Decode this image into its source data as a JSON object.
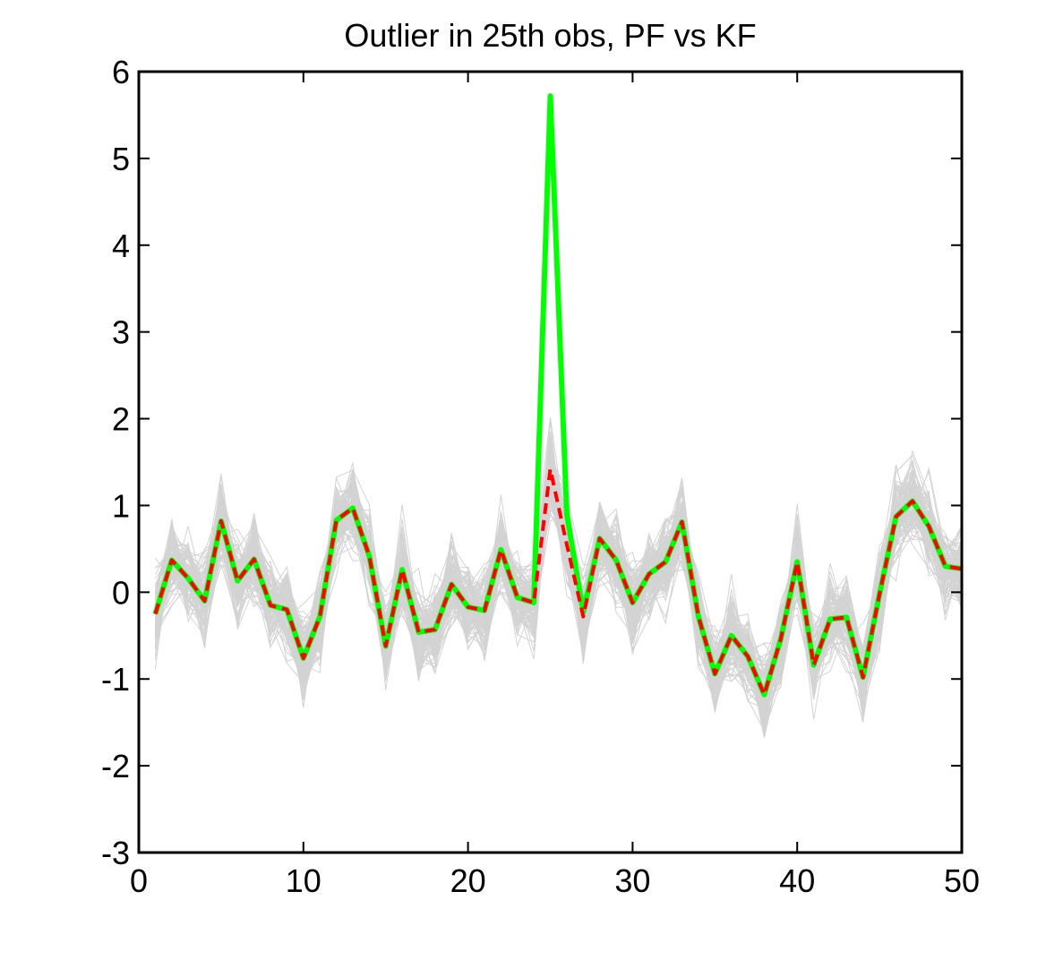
{
  "chart_data": {
    "type": "line",
    "title": "Outlier in 25th obs, PF vs KF",
    "xlabel": "",
    "ylabel": "",
    "xlim": [
      0,
      50
    ],
    "ylim": [
      -3,
      6
    ],
    "xticks": [
      0,
      10,
      20,
      30,
      40,
      50
    ],
    "yticks": [
      -3,
      -2,
      -1,
      0,
      1,
      2,
      3,
      4,
      5,
      6
    ],
    "grid": false,
    "legend": "none",
    "x": [
      1,
      2,
      3,
      4,
      5,
      6,
      7,
      8,
      9,
      10,
      11,
      12,
      13,
      14,
      15,
      16,
      17,
      18,
      19,
      20,
      21,
      22,
      23,
      24,
      25,
      26,
      27,
      28,
      29,
      30,
      31,
      32,
      33,
      34,
      35,
      36,
      37,
      38,
      39,
      40,
      41,
      42,
      43,
      44,
      45,
      46,
      47,
      48,
      49,
      50
    ],
    "series": [
      {
        "color": "#00ff00",
        "style": "solid",
        "values": [
          -0.25,
          0.37,
          0.16,
          -0.1,
          0.82,
          0.13,
          0.38,
          -0.15,
          -0.2,
          -0.76,
          -0.28,
          0.83,
          0.97,
          0.42,
          -0.62,
          0.26,
          -0.46,
          -0.43,
          0.09,
          -0.17,
          -0.21,
          0.49,
          -0.06,
          -0.12,
          5.72,
          0.9,
          -0.23,
          0.62,
          0.37,
          -0.12,
          0.21,
          0.35,
          0.81,
          -0.28,
          -0.94,
          -0.5,
          -0.74,
          -1.18,
          -0.54,
          0.35,
          -0.84,
          -0.31,
          -0.29,
          -0.98,
          -0.02,
          0.87,
          1.05,
          0.76,
          0.3,
          0.27
        ]
      },
      {
        "color": "#ff0000",
        "style": "dashed",
        "values": [
          -0.25,
          0.37,
          0.16,
          -0.1,
          0.82,
          0.13,
          0.38,
          -0.15,
          -0.2,
          -0.76,
          -0.28,
          0.83,
          0.97,
          0.42,
          -0.62,
          0.26,
          -0.46,
          -0.43,
          0.09,
          -0.17,
          -0.21,
          0.49,
          -0.06,
          -0.12,
          1.42,
          0.55,
          -0.28,
          0.62,
          0.37,
          -0.12,
          0.21,
          0.35,
          0.81,
          -0.28,
          -0.94,
          -0.5,
          -0.74,
          -1.18,
          -0.54,
          0.35,
          -0.84,
          -0.31,
          -0.29,
          -0.98,
          -0.02,
          0.87,
          1.05,
          0.76,
          0.3,
          0.27
        ]
      }
    ],
    "particle_color": "#d3d3d3",
    "particle_spread": 0.55
  }
}
